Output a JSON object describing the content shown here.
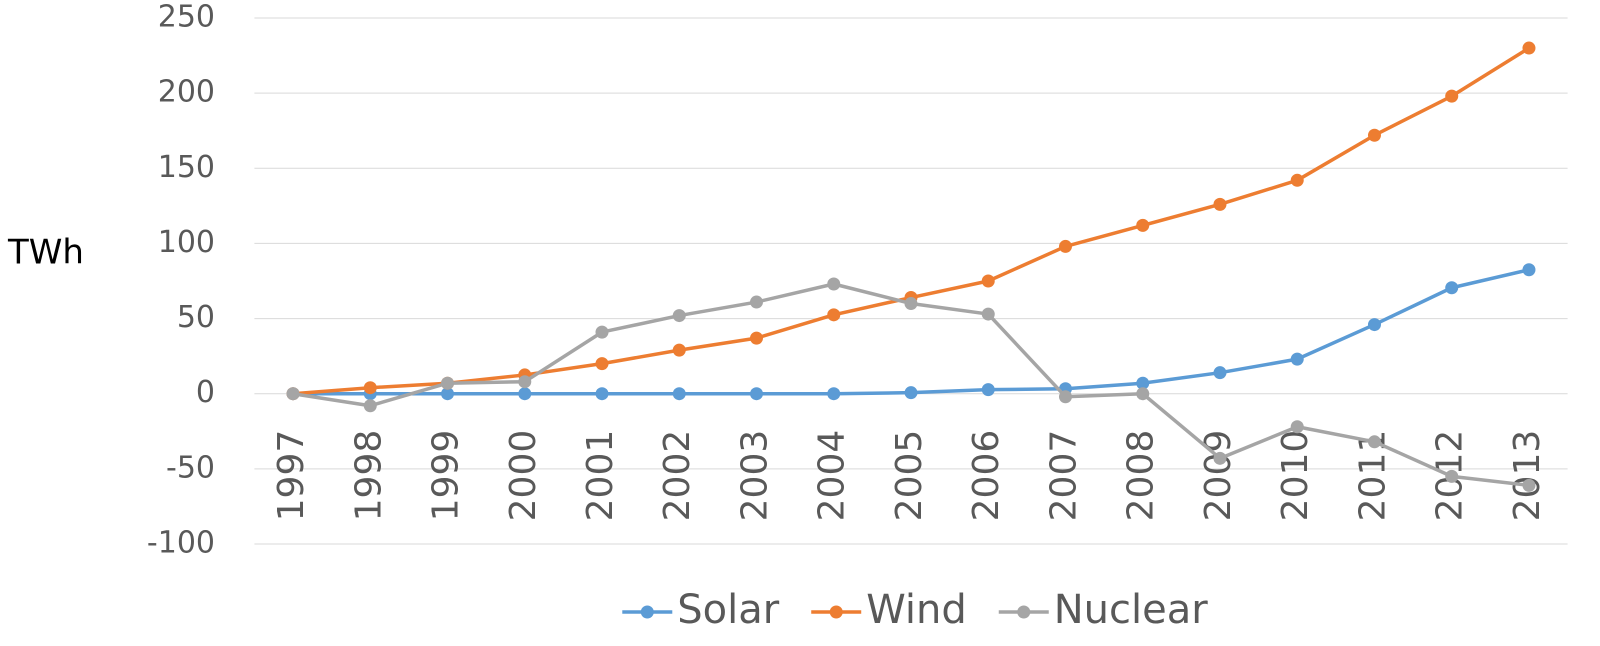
{
  "chart_data": {
    "type": "line",
    "y_label": "TWh",
    "categories": [
      "1997",
      "1998",
      "1999",
      "2000",
      "2001",
      "2002",
      "2003",
      "2004",
      "2005",
      "2006",
      "2007",
      "2008",
      "2009",
      "2010",
      "2011",
      "2012",
      "2013"
    ],
    "series": [
      {
        "name": "Solar",
        "color": "#5b9bd5",
        "values": [
          0,
          0,
          0,
          0,
          0,
          0,
          0,
          0,
          0.7,
          2.7,
          3.3,
          7,
          14,
          23,
          46,
          70.5,
          82.5
        ]
      },
      {
        "name": "Wind",
        "color": "#ed7d31",
        "values": [
          0,
          4,
          7,
          12.5,
          20,
          29,
          37,
          52.5,
          64,
          75,
          98,
          112,
          126,
          142,
          172,
          198,
          230
        ]
      },
      {
        "name": "Nuclear",
        "color": "#a5a5a5",
        "values": [
          0,
          -8,
          7,
          8,
          41,
          52,
          61,
          73,
          60,
          53,
          -2,
          0,
          -43,
          -22,
          -32,
          -55,
          -61
        ]
      }
    ],
    "ylim": [
      -100,
      250
    ],
    "yticks": [
      -100,
      -50,
      0,
      50,
      100,
      150,
      200,
      250
    ],
    "grid": true,
    "legend": "bottom"
  }
}
